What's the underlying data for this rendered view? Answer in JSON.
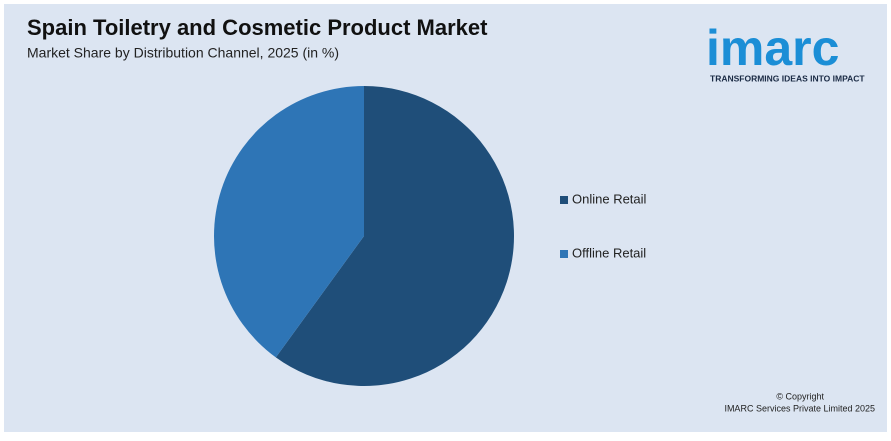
{
  "chart_data": {
    "type": "pie",
    "title": "Spain Toiletry and Cosmetic Product Market",
    "subtitle": "Market Share by Distribution Channel, 2025 (in %)",
    "categories": [
      "Online Retail",
      "Offline Retail"
    ],
    "values": [
      60,
      40
    ],
    "colors": [
      "#1f4e79",
      "#2e75b6"
    ],
    "legend": "right"
  },
  "logo": {
    "name": "imarc",
    "tagline": "TRANSFORMING IDEAS INTO IMPACT"
  },
  "footer": {
    "copyright": "© Copyright",
    "company": "IMARC Services Private Limited 2025"
  }
}
